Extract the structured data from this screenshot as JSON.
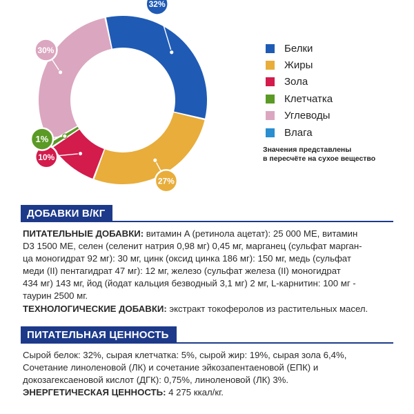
{
  "chart_data": {
    "type": "donut",
    "categories": [
      "Белки",
      "Жиры",
      "Зола",
      "Клетчатка",
      "Углеводы",
      "Влага"
    ],
    "values": [
      32,
      27,
      10,
      1,
      30,
      0
    ],
    "data_labels": [
      "32%",
      "27%",
      "10%",
      "1%",
      "30%",
      ""
    ],
    "colors": [
      "#1f5bb5",
      "#e8ad3b",
      "#d31b4c",
      "#5a9a25",
      "#dba6c0",
      "#2a8ed0"
    ],
    "legend_position": "right"
  },
  "legend": {
    "items": [
      {
        "label": "Белки",
        "color": "#1f5bb5"
      },
      {
        "label": "Жиры",
        "color": "#e8ad3b"
      },
      {
        "label": "Зола",
        "color": "#d31b4c"
      },
      {
        "label": "Клетчатка",
        "color": "#5a9a25"
      },
      {
        "label": "Углеводы",
        "color": "#dba6c0"
      },
      {
        "label": "Влага",
        "color": "#2a8ed0"
      }
    ],
    "note_line1": "Значения представлены",
    "note_line2": "в пересчёте на сухое вещество"
  },
  "additives": {
    "header": "ДОБАВКИ В/КГ",
    "nutritional_label": "ПИТАТЕЛЬНЫЕ ДОБАВКИ:",
    "nutritional_l1": " витамин A (ретинола ацетат): 25 000 МЕ, витамин",
    "nutritional_l2": "D3 1500 МЕ, селен (селенит натрия 0,98 мг) 0,45 мг, марганец (сульфат марган-",
    "nutritional_l3": "ца моногидрат 92 мг): 30 мг, цинк (оксид цинка 186 мг): 150 мг, медь (сульфат",
    "nutritional_l4": "меди (II) пентагидрат 47 мг): 12 мг, железо (сульфат железа (II) моногидрат",
    "nutritional_l5": "434 мг) 143 мг, йод (йодат кальция безводный 3,1 мг) 2 мг, L-карнитин: 100 мг -",
    "nutritional_l6": "таурин 2500 мг.",
    "technological_label": "ТЕХНОЛОГИЧЕСКИЕ ДОБАВКИ:",
    "technological_text": " экстракт токоферолов из растительных масел."
  },
  "nutrition": {
    "header": "ПИТАТЕЛЬНАЯ ЦЕННОСТЬ",
    "line1": "Сырой белок: 32%, сырая клетчатка: 5%, сырой жир: 19%, сырая зола 6,4%,",
    "line2": "Сочетание линоленовой (ЛК) и сочетание эйкозапентаеновой (ЕПК) и",
    "line3": "докозагексаеновой кислот (ДГК): 0,75%, линоленовой (ЛК) 3%.",
    "energy_label": "ЭНЕРГЕТИЧЕСКАЯ ЦЕННОСТЬ:",
    "energy_value": " 4 275 ккал/кг."
  }
}
